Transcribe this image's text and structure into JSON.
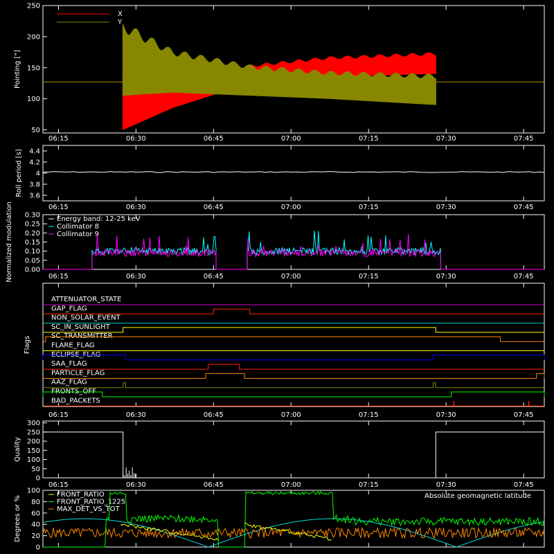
{
  "time_ticks": [
    "06:15",
    "06:30",
    "06:45",
    "07:00",
    "07:15",
    "07:30",
    "07:45"
  ],
  "colors": {
    "background": "#000000",
    "axes": "#ffffff",
    "x": "#ff0000",
    "y": "#888800",
    "white": "#ffffff",
    "cyan": "#00ffff",
    "magenta": "#ff00ff",
    "green": "#00ff00",
    "orange": "#ff8800",
    "yellow": "#ffff00",
    "blue": "#0000ff",
    "purple": "#cc00cc",
    "red": "#ff2200",
    "lightcyan": "#00dddd"
  },
  "chart_data": [
    {
      "id": "pointing",
      "type": "line",
      "ylabel": "Pointing [\"]",
      "ylim": [
        45,
        250
      ],
      "yticks": [
        50,
        100,
        150,
        200,
        250
      ],
      "xlim_minutes": [
        0,
        97
      ],
      "series": [
        {
          "name": "X",
          "color": "#ff0000",
          "baseline": 127,
          "start_min": 15.5,
          "end_min": 76,
          "envelope_low": [
            [
              15.5,
              50
            ],
            [
              25,
              85
            ],
            [
              40,
              125
            ],
            [
              55,
              135
            ],
            [
              76,
              140
            ]
          ],
          "envelope_high": [
            [
              15.5,
              140
            ],
            [
              25,
              145
            ],
            [
              40,
              155
            ],
            [
              55,
              168
            ],
            [
              76,
              175
            ]
          ]
        },
        {
          "name": "Y",
          "color": "#888800",
          "baseline": 127,
          "start_min": 15.5,
          "end_min": 76,
          "envelope_low": [
            [
              15.5,
              105
            ],
            [
              25,
              110
            ],
            [
              40,
              105
            ],
            [
              55,
              100
            ],
            [
              76,
              90
            ]
          ],
          "envelope_high": [
            [
              15.5,
              225
            ],
            [
              25,
              180
            ],
            [
              40,
              155
            ],
            [
              55,
              145
            ],
            [
              76,
              140
            ]
          ]
        }
      ]
    },
    {
      "id": "roll",
      "type": "line",
      "ylabel": "Roll period [s]",
      "ylim": [
        3.5,
        4.5
      ],
      "yticks": [
        3.6,
        3.8,
        4.0,
        4.2,
        4.4
      ],
      "series": [
        {
          "name": "",
          "color": "#ffffff",
          "value": 4.02
        }
      ]
    },
    {
      "id": "modulation",
      "type": "line",
      "ylabel": "Normalized modulation",
      "ylim": [
        0,
        0.3
      ],
      "yticks": [
        0.0,
        0.05,
        0.1,
        0.15,
        0.2,
        0.25,
        0.3
      ],
      "ytick_labels": [
        "0.00",
        "0.05",
        "0.10",
        "0.15",
        "0.20",
        "0.25",
        "0.30"
      ],
      "legend": [
        "Energy band: 12-25 keV",
        "Collimator 8",
        "Collimator 9"
      ],
      "legend_colors": [
        "#ffffff",
        "#00ffff",
        "#ff00ff"
      ],
      "active_intervals": [
        [
          9.5,
          33.5
        ],
        [
          39.5,
          77
        ]
      ],
      "series": [
        {
          "name": "Collimator 8",
          "color": "#00ffff",
          "typical": 0.1
        },
        {
          "name": "Collimator 9",
          "color": "#ff00ff",
          "typical": 0.09
        }
      ]
    },
    {
      "id": "flags",
      "type": "line",
      "ylabel": "Flags",
      "rows": [
        {
          "name": "ATTENUATOR_STATE",
          "color": "#cc00cc",
          "high": []
        },
        {
          "name": "GAP_FLAG",
          "color": "#ff2200",
          "high": [
            [
              33,
              40
            ]
          ]
        },
        {
          "name": "NON_SOLAR_EVENT",
          "color": "#00cccc",
          "high": []
        },
        {
          "name": "SC_IN_SUNLIGHT",
          "color": "#ffff00",
          "high": [
            [
              15.5,
              76
            ]
          ]
        },
        {
          "name": "SC_TRANSMITTER",
          "color": "#ff8800",
          "high": [
            [
              0.5,
              88.5
            ]
          ]
        },
        {
          "name": "FLARE_FLAG",
          "color": "#ffff00",
          "high": []
        },
        {
          "name": "ECLIPSE_FLAG",
          "color": "#0000ff",
          "high": [
            [
              0,
              16
            ],
            [
              75.5,
              97
            ]
          ]
        },
        {
          "name": "SAA_FLAG",
          "color": "#ff2200",
          "high": [
            [
              32,
              38
            ]
          ]
        },
        {
          "name": "PARTICLE_FLAG",
          "color": "#ff8800",
          "high": [
            [
              31.5,
              39
            ],
            [
              95.5,
              97
            ]
          ]
        },
        {
          "name": "AAZ_FLAG",
          "color": "#888800",
          "high": [
            [
              15.5,
              16
            ],
            [
              75.5,
              76
            ]
          ]
        },
        {
          "name": "FRONTS_OFF",
          "color": "#00ff00",
          "high": [
            [
              0,
              11.5
            ],
            [
              79,
              97
            ]
          ]
        },
        {
          "name": "BAD_PACKETS",
          "color": "#ff2200",
          "spikes": [
            79.5,
            94
          ]
        }
      ]
    },
    {
      "id": "quality",
      "type": "line",
      "ylabel": "Quality",
      "ylim": [
        0,
        310
      ],
      "yticks": [
        0,
        50,
        100,
        150,
        200,
        250,
        300
      ],
      "series": [
        {
          "name": "",
          "color": "#ffffff",
          "segments": [
            [
              0,
              15.5,
              250
            ],
            [
              76,
              97,
              250
            ]
          ]
        }
      ]
    },
    {
      "id": "ratios",
      "type": "line",
      "ylabel": "Degrees or %",
      "ylim": [
        0,
        100
      ],
      "yticks": [
        0,
        20,
        40,
        60,
        80,
        100
      ],
      "legend": [
        "FRONT_RATIO",
        "FRONT_RATIO_1225",
        "MAX_DET_VS_TOT"
      ],
      "legend_colors": [
        "#ffff00",
        "#00ff00",
        "#ff8800"
      ],
      "annotation": "Absolute geomagnetic latitude",
      "annotation_color": "#00dddd",
      "series": [
        {
          "name": "FRONT_RATIO",
          "color": "#ffff00",
          "start": 40,
          "end": 14
        },
        {
          "name": "FRONT_RATIO_1225",
          "color": "#00ff00",
          "high_value": 95,
          "low_value": 50,
          "high_intervals": [
            [
              13,
              16
            ],
            [
              39,
              56
            ]
          ],
          "zero_intervals": [
            [
              0,
              12
            ],
            [
              34,
              39
            ]
          ]
        },
        {
          "name": "MAX_DET_VS_TOT",
          "color": "#ff8800",
          "typical": 25
        },
        {
          "name": "Absolute geomagnetic latitude",
          "color": "#00dddd",
          "period_min": 48,
          "amplitude": 50,
          "offset_min": 32
        }
      ]
    }
  ]
}
